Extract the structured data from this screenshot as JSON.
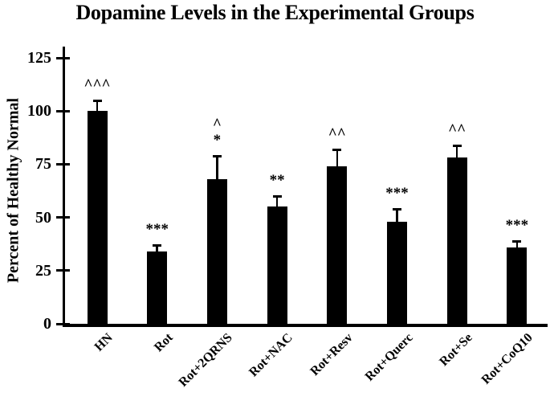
{
  "figure": {
    "background": "#ffffff",
    "ink_color": "#000000"
  },
  "chart_data": {
    "type": "bar",
    "title": "Dopamine Levels in the Experimental Groups",
    "ylabel": "Percent of Healthy Normal",
    "xlabel": "",
    "ylim": [
      0,
      125
    ],
    "yticks": [
      0,
      25,
      50,
      75,
      100,
      125
    ],
    "categories": [
      "HN",
      "Rot",
      "Rot+2QRNS",
      "Rot+NAC",
      "Rot+Resv",
      "Rot+Querc",
      "Rot+Se",
      "Rot+CoQ10"
    ],
    "values": [
      100,
      34,
      68,
      55,
      74,
      48,
      78,
      36
    ],
    "errors_plus": [
      5,
      3,
      11,
      5,
      8,
      6,
      6,
      3
    ],
    "annotations": [
      [
        "^^^"
      ],
      [
        "***"
      ],
      [
        "^",
        "*"
      ],
      [
        "**"
      ],
      [
        "^^"
      ],
      [
        "***"
      ],
      [
        "^^"
      ],
      [
        "***"
      ]
    ],
    "bar_color": "#000000",
    "error_bar_style": "upper-cap-only",
    "grid": false,
    "legend": false,
    "x_tick_rotation_deg": 45
  }
}
